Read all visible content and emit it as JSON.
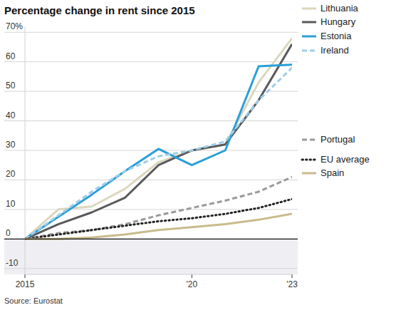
{
  "chart_data": {
    "type": "line",
    "title": "Percentage change in rent since 2015",
    "source": "Source: Eurostat",
    "x": [
      2015,
      2016,
      2017,
      2018,
      2019,
      2020,
      2021,
      2022,
      2023
    ],
    "xlim": [
      2015,
      2023
    ],
    "xticks": [
      2015,
      {
        "value": 2020,
        "label": "'20"
      },
      {
        "value": 2023,
        "label": "'23"
      }
    ],
    "ylim": [
      -12,
      72
    ],
    "yticks": [
      -10,
      0,
      10,
      20,
      30,
      40,
      50,
      60,
      {
        "value": 70,
        "label": "70%"
      }
    ],
    "grid": true,
    "series": [
      {
        "name": "Lithuania",
        "color": "#dcd7bd",
        "line_style": "solid",
        "values": [
          0,
          10,
          11,
          17,
          26,
          30,
          32,
          53,
          68
        ]
      },
      {
        "name": "Hungary",
        "color": "#58595b",
        "line_style": "solid",
        "values": [
          0,
          5,
          9,
          14,
          25,
          30,
          32,
          47,
          66
        ]
      },
      {
        "name": "Estonia",
        "color": "#2a9fd8",
        "line_style": "solid",
        "values": [
          0,
          7.5,
          15,
          23,
          30.5,
          25,
          30,
          58.5,
          59
        ]
      },
      {
        "name": "Ireland",
        "color": "#9fcdea",
        "line_style": "dashed",
        "values": [
          0,
          8,
          16,
          23,
          28,
          30,
          33,
          47,
          58
        ]
      },
      {
        "name": "Portugal",
        "color": "#9a9a9c",
        "line_style": "dashed",
        "values": [
          0,
          2,
          3,
          5,
          8,
          10.5,
          13,
          16,
          21
        ]
      },
      {
        "name": "EU average",
        "color": "#222222",
        "line_style": "dotted",
        "values": [
          0,
          1.5,
          3,
          4.5,
          6,
          7,
          8.5,
          10.5,
          13.5
        ]
      },
      {
        "name": "Spain",
        "color": "#c9bb8c",
        "line_style": "solid",
        "values": [
          0,
          0,
          0.5,
          1.5,
          3,
          4,
          5,
          6.5,
          8.5
        ]
      }
    ]
  }
}
